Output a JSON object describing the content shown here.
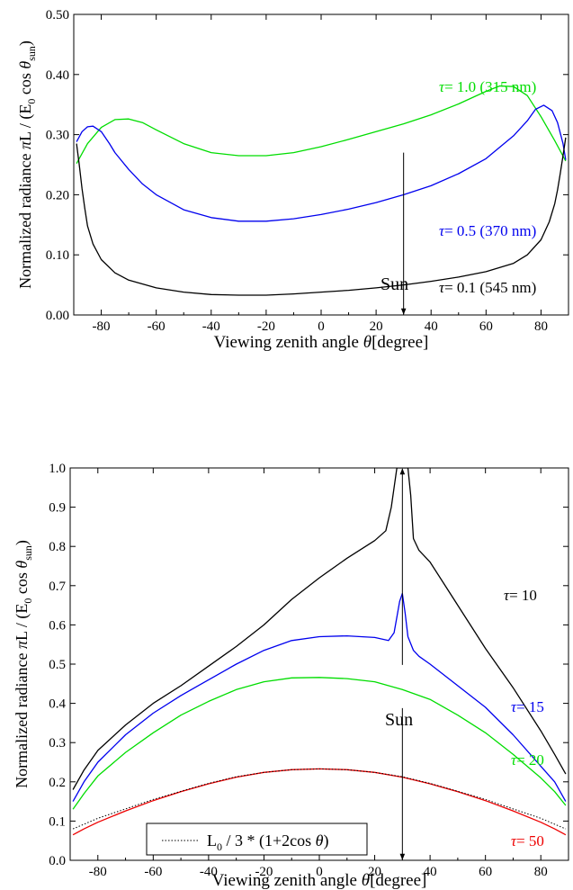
{
  "chart_data": [
    {
      "type": "line",
      "xlabel": "Viewing zenith angle θ[degree]",
      "ylabel": "Normalized radiance  πL / (E0 cos θsun)",
      "xlim": [
        -90,
        90
      ],
      "ylim": [
        0,
        0.5
      ],
      "xticks": [
        -80,
        -60,
        -40,
        -20,
        0,
        20,
        40,
        60,
        80
      ],
      "yticks": [
        0.0,
        0.1,
        0.2,
        0.3,
        0.4,
        0.5
      ],
      "ytick_labels": [
        "0.00",
        "0.10",
        "0.20",
        "0.30",
        "0.40",
        "0.50"
      ],
      "grid": false,
      "series": [
        {
          "name": "τ= 1.0 (315 nm)",
          "color": "#00dd00",
          "x": [
            -89,
            -85,
            -80,
            -75,
            -70,
            -65,
            -60,
            -50,
            -40,
            -30,
            -20,
            -10,
            0,
            10,
            20,
            30,
            40,
            50,
            60,
            65,
            70,
            75,
            80,
            85,
            89
          ],
          "y": [
            0.252,
            0.285,
            0.312,
            0.325,
            0.326,
            0.32,
            0.308,
            0.285,
            0.27,
            0.265,
            0.265,
            0.27,
            0.28,
            0.292,
            0.305,
            0.318,
            0.333,
            0.351,
            0.372,
            0.381,
            0.38,
            0.365,
            0.33,
            0.29,
            0.256
          ]
        },
        {
          "name": "τ= 0.5 (370 nm)",
          "color": "#0000ee",
          "x": [
            -89,
            -87,
            -85,
            -83,
            -80,
            -77,
            -75,
            -70,
            -65,
            -60,
            -50,
            -40,
            -30,
            -20,
            -10,
            0,
            10,
            20,
            30,
            40,
            50,
            60,
            70,
            75,
            78,
            81,
            84,
            86,
            88,
            89
          ],
          "y": [
            0.288,
            0.305,
            0.313,
            0.314,
            0.305,
            0.285,
            0.27,
            0.242,
            0.218,
            0.2,
            0.175,
            0.162,
            0.156,
            0.156,
            0.16,
            0.167,
            0.176,
            0.187,
            0.2,
            0.215,
            0.235,
            0.26,
            0.298,
            0.323,
            0.342,
            0.349,
            0.34,
            0.32,
            0.285,
            0.258
          ]
        },
        {
          "name": "τ= 0.1 (545 nm)",
          "color": "#000000",
          "x": [
            -89,
            -88,
            -87,
            -86,
            -85,
            -83,
            -80,
            -75,
            -70,
            -60,
            -50,
            -40,
            -30,
            -20,
            -10,
            0,
            10,
            20,
            30,
            40,
            50,
            60,
            70,
            75,
            80,
            83,
            85,
            86,
            87,
            88,
            89
          ],
          "y": [
            0.285,
            0.25,
            0.21,
            0.178,
            0.148,
            0.118,
            0.092,
            0.07,
            0.058,
            0.045,
            0.038,
            0.034,
            0.033,
            0.033,
            0.035,
            0.038,
            0.041,
            0.045,
            0.05,
            0.056,
            0.063,
            0.072,
            0.086,
            0.1,
            0.125,
            0.155,
            0.185,
            0.208,
            0.235,
            0.265,
            0.295
          ]
        }
      ],
      "annotations": [
        {
          "text": "Sun",
          "x": 30,
          "arrow_from_y": 0.27,
          "arrow_to_y": 0.0
        }
      ]
    },
    {
      "type": "line",
      "xlabel": "Viewing zenith angle θ[degree]",
      "ylabel": "Normalized radiance  πL / (E0 cos θsun)",
      "xlim": [
        -90,
        90
      ],
      "ylim": [
        0,
        1.0
      ],
      "xticks": [
        -80,
        -60,
        -40,
        -20,
        0,
        20,
        40,
        60,
        80
      ],
      "yticks": [
        0.0,
        0.1,
        0.2,
        0.3,
        0.4,
        0.5,
        0.6,
        0.7,
        0.8,
        0.9,
        1.0
      ],
      "ytick_labels": [
        "0.0",
        "0.1",
        "0.2",
        "0.3",
        "0.4",
        "0.5",
        "0.6",
        "0.7",
        "0.8",
        "0.9",
        "1.0"
      ],
      "grid": false,
      "series": [
        {
          "name": "τ= 10",
          "color": "#000000",
          "x": [
            -89,
            -85,
            -80,
            -70,
            -60,
            -50,
            -40,
            -30,
            -20,
            -10,
            0,
            10,
            20,
            24,
            26,
            27,
            28,
            29,
            30,
            31,
            32,
            33,
            34,
            36,
            40,
            50,
            60,
            70,
            80,
            85,
            89
          ],
          "y": [
            0.18,
            0.23,
            0.28,
            0.345,
            0.4,
            0.445,
            0.495,
            0.545,
            0.6,
            0.665,
            0.72,
            0.77,
            0.815,
            0.84,
            0.9,
            0.95,
            1.0,
            1.0,
            1.0,
            1.0,
            1.0,
            0.93,
            0.82,
            0.79,
            0.76,
            0.65,
            0.54,
            0.44,
            0.33,
            0.27,
            0.22
          ]
        },
        {
          "name": "τ= 15",
          "color": "#0000ee",
          "x": [
            -89,
            -85,
            -80,
            -70,
            -60,
            -50,
            -40,
            -30,
            -20,
            -10,
            0,
            10,
            20,
            25,
            27,
            28,
            29,
            30,
            31,
            32,
            34,
            36,
            40,
            50,
            60,
            70,
            80,
            85,
            89
          ],
          "y": [
            0.15,
            0.2,
            0.25,
            0.32,
            0.375,
            0.42,
            0.46,
            0.5,
            0.535,
            0.56,
            0.57,
            0.572,
            0.568,
            0.56,
            0.58,
            0.62,
            0.66,
            0.68,
            0.63,
            0.57,
            0.535,
            0.52,
            0.5,
            0.445,
            0.39,
            0.32,
            0.24,
            0.2,
            0.15
          ]
        },
        {
          "name": "τ= 20",
          "color": "#00dd00",
          "x": [
            -89,
            -85,
            -80,
            -70,
            -60,
            -50,
            -40,
            -30,
            -20,
            -10,
            0,
            10,
            20,
            30,
            40,
            50,
            60,
            70,
            80,
            85,
            89
          ],
          "y": [
            0.13,
            0.17,
            0.215,
            0.275,
            0.325,
            0.37,
            0.405,
            0.435,
            0.455,
            0.465,
            0.466,
            0.463,
            0.455,
            0.435,
            0.41,
            0.37,
            0.325,
            0.27,
            0.21,
            0.175,
            0.14
          ]
        },
        {
          "name": "τ= 50",
          "color": "#ee0000",
          "x": [
            -89,
            -85,
            -80,
            -70,
            -60,
            -50,
            -40,
            -30,
            -20,
            -10,
            0,
            10,
            20,
            30,
            40,
            50,
            60,
            70,
            80,
            85,
            89
          ],
          "y": [
            0.065,
            0.08,
            0.097,
            0.126,
            0.152,
            0.175,
            0.195,
            0.212,
            0.224,
            0.231,
            0.233,
            0.231,
            0.224,
            0.212,
            0.195,
            0.175,
            0.152,
            0.126,
            0.097,
            0.08,
            0.065
          ]
        }
      ],
      "reference_line": {
        "label": "L0 / 3 * (1+2cos θ)",
        "style": "dotted",
        "color": "#000000",
        "x": [
          -89,
          -85,
          -80,
          -70,
          -60,
          -50,
          -40,
          -30,
          -20,
          -10,
          0,
          10,
          20,
          30,
          40,
          50,
          60,
          70,
          80,
          85,
          89
        ],
        "y": [
          0.08,
          0.092,
          0.107,
          0.131,
          0.155,
          0.176,
          0.196,
          0.213,
          0.224,
          0.231,
          0.233,
          0.231,
          0.224,
          0.213,
          0.196,
          0.176,
          0.155,
          0.131,
          0.107,
          0.092,
          0.08
        ]
      },
      "legend": {
        "position": "bottom-left",
        "entries": [
          "L0 / 3 * (1+2cos θ)"
        ]
      },
      "annotations": [
        {
          "text": "Sun",
          "x": 30,
          "arrow_from_y": 0.42,
          "arrow_to_y": 1.0,
          "arrow_down_to_y": 0.0
        }
      ]
    }
  ],
  "labels": {
    "top": {
      "xlabel_main": "Viewing zenith angle ",
      "xlabel_theta": "θ",
      "xlabel_unit": "[degree]",
      "ylabel_main": "Normalized radiance  ",
      "ylabel_pi": "π",
      "ylabel_L": "L / (E",
      "ylabel_sub0": "0",
      "ylabel_cos": " cos ",
      "ylabel_theta": "θ",
      "ylabel_sub_sun": "sun",
      "ylabel_close": ")",
      "sun": "Sun",
      "tau": "τ",
      "series_text": [
        "= 1.0 (315 nm)",
        "= 0.5 (370 nm)",
        "= 0.1 (545 nm)"
      ]
    },
    "bottom": {
      "xlabel_main": "Viewing zenith angle ",
      "xlabel_theta": "θ",
      "xlabel_unit": "[degree]",
      "ylabel_main": "Normalized radiance  ",
      "ylabel_pi": "π",
      "ylabel_L": "L / (E",
      "ylabel_sub0": "0",
      "ylabel_cos": " cos ",
      "ylabel_theta": "θ",
      "ylabel_sub_sun": "sun",
      "ylabel_close": ")",
      "sun": "Sun",
      "tau": "τ",
      "series_text": [
        "= 10",
        "= 15",
        "= 20",
        "= 50"
      ],
      "legend_L": "L",
      "legend_sub0": "0",
      "legend_rest": " / 3 * (1+2cos ",
      "legend_theta": "θ",
      "legend_close": ")"
    }
  }
}
